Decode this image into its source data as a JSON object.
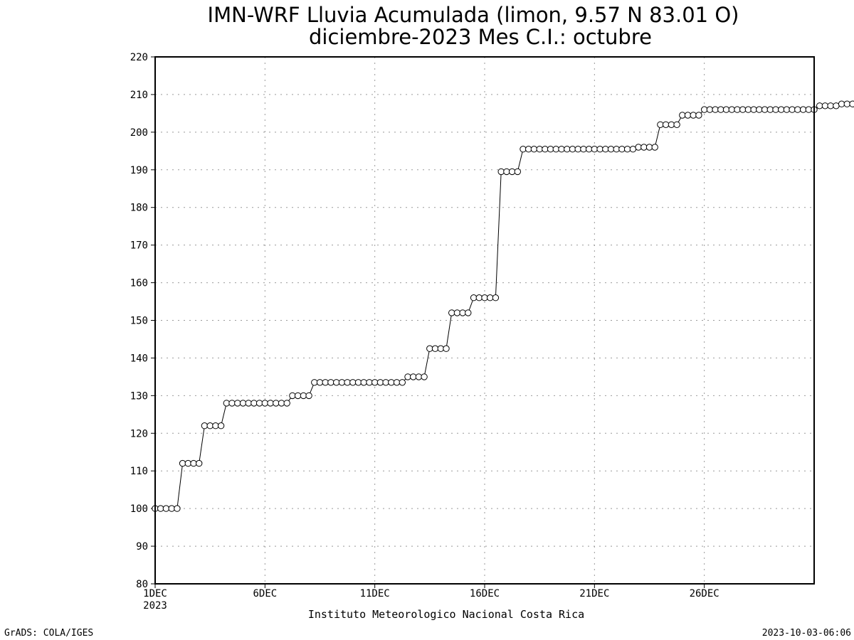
{
  "chart_data": {
    "type": "line",
    "title": "IMN-WRF  Lluvia Acumulada (limon, 9.57  N 83.01  O)",
    "subtitle": "diciembre-2023 Mes C.I.: octubre",
    "xlabel": "",
    "ylabel": "",
    "ylim": [
      80,
      220
    ],
    "yticks": [
      80,
      90,
      100,
      110,
      120,
      130,
      140,
      150,
      160,
      170,
      180,
      190,
      200,
      210,
      220
    ],
    "xlim": [
      1,
      31
    ],
    "xticks": [
      {
        "day": 1,
        "label": "1DEC",
        "sublabel": "2023"
      },
      {
        "day": 6,
        "label": "6DEC",
        "sublabel": ""
      },
      {
        "day": 11,
        "label": "11DEC",
        "sublabel": ""
      },
      {
        "day": 16,
        "label": "16DEC",
        "sublabel": ""
      },
      {
        "day": 21,
        "label": "21DEC",
        "sublabel": ""
      },
      {
        "day": 26,
        "label": "26DEC",
        "sublabel": ""
      }
    ],
    "grid": true,
    "marker": "open-circle",
    "series": [
      {
        "step_days": 0.25,
        "values": [
          100,
          100,
          100,
          100,
          100,
          112,
          112,
          112,
          112,
          122,
          122,
          122,
          122,
          128,
          128,
          128,
          128,
          128,
          128,
          128,
          128,
          128,
          128,
          128,
          128,
          130,
          130,
          130,
          130,
          133.5,
          133.5,
          133.5,
          133.5,
          133.5,
          133.5,
          133.5,
          133.5,
          133.5,
          133.5,
          133.5,
          133.5,
          133.5,
          133.5,
          133.5,
          133.5,
          133.5,
          135,
          135,
          135,
          135,
          142.5,
          142.5,
          142.5,
          142.5,
          152,
          152,
          152,
          152,
          156,
          156,
          156,
          156,
          156,
          189.5,
          189.5,
          189.5,
          189.5,
          195.5,
          195.5,
          195.5,
          195.5,
          195.5,
          195.5,
          195.5,
          195.5,
          195.5,
          195.5,
          195.5,
          195.5,
          195.5,
          195.5,
          195.5,
          195.5,
          195.5,
          195.5,
          195.5,
          195.5,
          195.5,
          196,
          196,
          196,
          196,
          202,
          202,
          202,
          202,
          204.5,
          204.5,
          204.5,
          204.5,
          206,
          206,
          206,
          206,
          206,
          206,
          206,
          206,
          206,
          206,
          206,
          206,
          206,
          206,
          206,
          206,
          206,
          206,
          206,
          206,
          206,
          207,
          207,
          207,
          207,
          207.5,
          207.5,
          207.5,
          207.5,
          207.5,
          207.5,
          207.5,
          207.5
        ]
      }
    ]
  },
  "footer": {
    "institution": "Instituto Meteorologico Nacional Costa Rica",
    "left": "GrADS: COLA/IGES",
    "right": "2023-10-03-06:06"
  }
}
